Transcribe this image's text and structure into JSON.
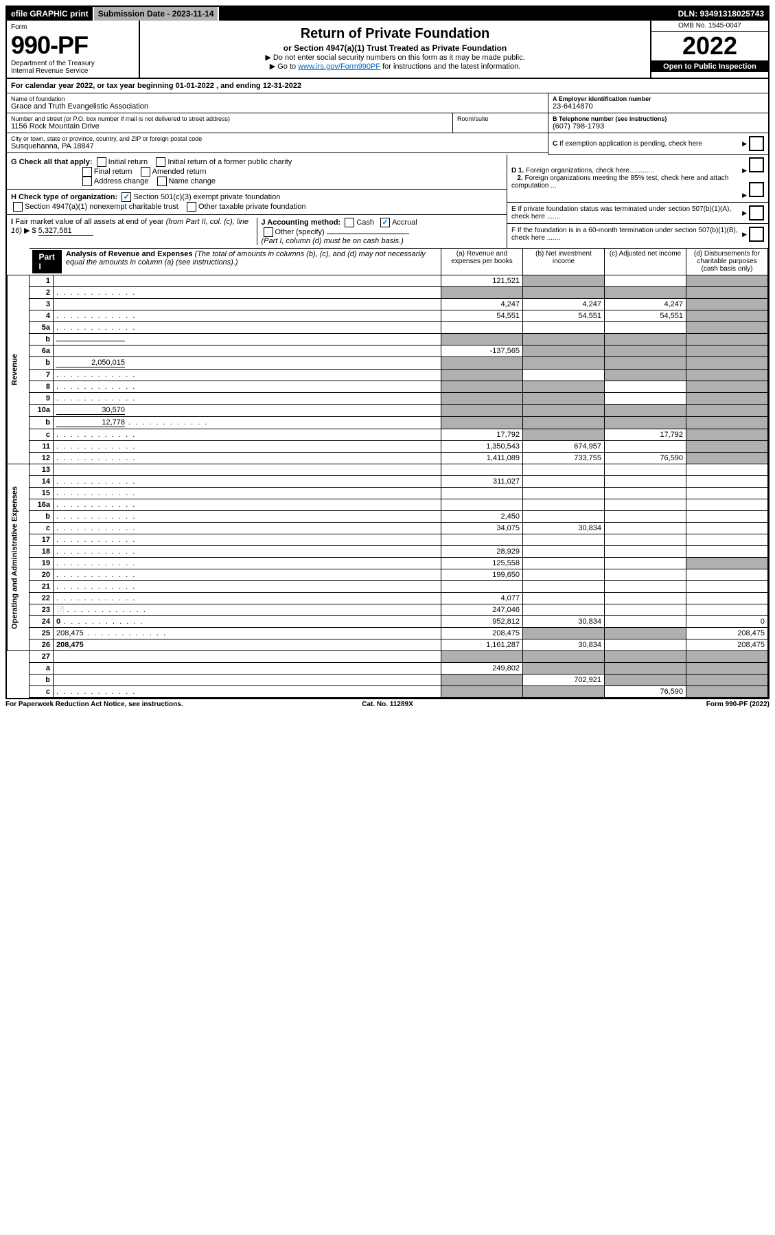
{
  "topbar": {
    "efile": "efile GRAPHIC print",
    "submission": "Submission Date - 2023-11-14",
    "dln": "DLN: 93491318025743"
  },
  "header": {
    "form_label": "Form",
    "form_no": "990-PF",
    "dept": "Department of the Treasury",
    "irs": "Internal Revenue Service",
    "title": "Return of Private Foundation",
    "subtitle": "or Section 4947(a)(1) Trust Treated as Private Foundation",
    "instr1": "▶ Do not enter social security numbers on this form as it may be made public.",
    "instr2_pre": "▶ Go to ",
    "instr2_link": "www.irs.gov/Form990PF",
    "instr2_post": " for instructions and the latest information.",
    "omb": "OMB No. 1545-0047",
    "year": "2022",
    "open": "Open to Public Inspection"
  },
  "calyear": {
    "text_a": "For calendar year 2022, or tax year beginning ",
    "begin": "01-01-2022",
    "text_b": " , and ending ",
    "end": "12-31-2022"
  },
  "id": {
    "name_label": "Name of foundation",
    "name": "Grace and Truth Evangelistic Association",
    "addr_label": "Number and street (or P.O. box number if mail is not delivered to street address)",
    "addr": "1156 Rock Mountain Drive",
    "room_label": "Room/suite",
    "city_label": "City or town, state or province, country, and ZIP or foreign postal code",
    "city": "Susquehanna, PA  18847",
    "ein_label": "A Employer identification number",
    "ein": "23-6414870",
    "phone_label": "B Telephone number (see instructions)",
    "phone": "(607) 798-1793",
    "c_label": "C If exemption application is pending, check here"
  },
  "boxG": {
    "label": "G Check all that apply:",
    "items": [
      "Initial return",
      "Initial return of a former public charity",
      "Final return",
      "Amended return",
      "Address change",
      "Name change"
    ]
  },
  "boxH": {
    "label": "H Check type of organization:",
    "opt1": "Section 501(c)(3) exempt private foundation",
    "opt2": "Section 4947(a)(1) nonexempt charitable trust",
    "opt3": "Other taxable private foundation"
  },
  "boxI": {
    "label": "I Fair market value of all assets at end of year (from Part II, col. (c), line 16) ▶ $",
    "value": "5,327,581"
  },
  "boxJ": {
    "label": "J Accounting method:",
    "cash": "Cash",
    "accrual": "Accrual",
    "other": "Other (specify)",
    "note": "(Part I, column (d) must be on cash basis.)"
  },
  "right": {
    "d1": "D 1. Foreign organizations, check here.............",
    "d2": "2. Foreign organizations meeting the 85% test, check here and attach computation ...",
    "e": "E  If private foundation status was terminated under section 507(b)(1)(A), check here .......",
    "f": "F  If the foundation is in a 60-month termination under section 507(b)(1)(B), check here ......."
  },
  "part1": {
    "badge": "Part I",
    "title": "Analysis of Revenue and Expenses",
    "title_note": " (The total of amounts in columns (b), (c), and (d) may not necessarily equal the amounts in column (a) (see instructions).)",
    "col_a": "(a) Revenue and expenses per books",
    "col_b": "(b) Net investment income",
    "col_c": "(c) Adjusted net income",
    "col_d": "(d) Disbursements for charitable purposes (cash basis only)",
    "revenue_label": "Revenue",
    "expenses_label": "Operating and Administrative Expenses"
  },
  "rows": [
    {
      "n": "1",
      "d": "",
      "a": "121,521",
      "b": "",
      "c": "",
      "sb": true,
      "sd": true
    },
    {
      "n": "2",
      "d": "",
      "a": "",
      "b": "",
      "c": "",
      "sa": true,
      "sb": true,
      "sc": true,
      "sd": true,
      "dots": true
    },
    {
      "n": "3",
      "d": "",
      "a": "4,247",
      "b": "4,247",
      "c": "4,247",
      "sd": true
    },
    {
      "n": "4",
      "d": "",
      "a": "54,551",
      "b": "54,551",
      "c": "54,551",
      "sd": true,
      "dots": true
    },
    {
      "n": "5a",
      "d": "",
      "a": "",
      "b": "",
      "c": "",
      "sd": true,
      "dots": true
    },
    {
      "n": "b",
      "d": "",
      "a": "",
      "b": "",
      "c": "",
      "sa": true,
      "sb": true,
      "sc": true,
      "sd": true,
      "inline": ""
    },
    {
      "n": "6a",
      "d": "",
      "a": "-137,565",
      "b": "",
      "c": "",
      "sb": true,
      "sc": true,
      "sd": true
    },
    {
      "n": "b",
      "d": "",
      "a": "",
      "b": "",
      "c": "",
      "sa": true,
      "sb": true,
      "sc": true,
      "sd": true,
      "inline": "2,050,015"
    },
    {
      "n": "7",
      "d": "",
      "a": "",
      "b": "",
      "c": "",
      "sa": true,
      "sc": true,
      "sd": true,
      "dots": true
    },
    {
      "n": "8",
      "d": "",
      "a": "",
      "b": "",
      "c": "",
      "sa": true,
      "sb": true,
      "sd": true,
      "dots": true
    },
    {
      "n": "9",
      "d": "",
      "a": "",
      "b": "",
      "c": "",
      "sa": true,
      "sb": true,
      "sd": true,
      "dots": true
    },
    {
      "n": "10a",
      "d": "",
      "a": "",
      "b": "",
      "c": "",
      "sa": true,
      "sb": true,
      "sc": true,
      "sd": true,
      "inline": "30,570"
    },
    {
      "n": "b",
      "d": "",
      "a": "",
      "b": "",
      "c": "",
      "sa": true,
      "sb": true,
      "sc": true,
      "sd": true,
      "inline": "12,778",
      "dots": true
    },
    {
      "n": "c",
      "d": "",
      "a": "17,792",
      "b": "",
      "c": "17,792",
      "sb": true,
      "sd": true,
      "dots": true
    },
    {
      "n": "11",
      "d": "",
      "a": "1,350,543",
      "b": "674,957",
      "c": "",
      "sd": true,
      "dots": true
    },
    {
      "n": "12",
      "d": "",
      "a": "1,411,089",
      "b": "733,755",
      "c": "76,590",
      "sd": true,
      "bold": true,
      "dots": true
    }
  ],
  "exp_rows": [
    {
      "n": "13",
      "d": "",
      "a": "",
      "b": "",
      "c": ""
    },
    {
      "n": "14",
      "d": "",
      "a": "311,027",
      "b": "",
      "c": "",
      "dots": true
    },
    {
      "n": "15",
      "d": "",
      "a": "",
      "b": "",
      "c": "",
      "dots": true
    },
    {
      "n": "16a",
      "d": "",
      "a": "",
      "b": "",
      "c": "",
      "dots": true
    },
    {
      "n": "b",
      "d": "",
      "a": "2,450",
      "b": "",
      "c": "",
      "dots": true
    },
    {
      "n": "c",
      "d": "",
      "a": "34,075",
      "b": "30,834",
      "c": "",
      "dots": true
    },
    {
      "n": "17",
      "d": "",
      "a": "",
      "b": "",
      "c": "",
      "dots": true
    },
    {
      "n": "18",
      "d": "",
      "a": "28,929",
      "b": "",
      "c": "",
      "dots": true
    },
    {
      "n": "19",
      "d": "",
      "a": "125,558",
      "b": "",
      "c": "",
      "sd": true,
      "dots": true
    },
    {
      "n": "20",
      "d": "",
      "a": "199,650",
      "b": "",
      "c": "",
      "dots": true
    },
    {
      "n": "21",
      "d": "",
      "a": "",
      "b": "",
      "c": "",
      "dots": true
    },
    {
      "n": "22",
      "d": "",
      "a": "4,077",
      "b": "",
      "c": "",
      "dots": true
    },
    {
      "n": "23",
      "d": "",
      "a": "247,046",
      "b": "",
      "c": "",
      "dots": true,
      "icon": true
    },
    {
      "n": "24",
      "d": "0",
      "a": "952,812",
      "b": "30,834",
      "c": "",
      "bold": true,
      "dots": true
    },
    {
      "n": "25",
      "d": "208,475",
      "a": "208,475",
      "b": "",
      "c": "",
      "sb": true,
      "sc": true,
      "dots": true
    },
    {
      "n": "26",
      "d": "208,475",
      "a": "1,161,287",
      "b": "30,834",
      "c": "",
      "bold": true
    }
  ],
  "bottom_rows": [
    {
      "n": "27",
      "d": "",
      "a": "",
      "b": "",
      "c": "",
      "sa": true,
      "sb": true,
      "sc": true,
      "sd": true
    },
    {
      "n": "a",
      "d": "",
      "a": "249,802",
      "b": "",
      "c": "",
      "sb": true,
      "sc": true,
      "sd": true,
      "bold": true
    },
    {
      "n": "b",
      "d": "",
      "a": "",
      "b": "702,921",
      "c": "",
      "sa": true,
      "sc": true,
      "sd": true,
      "bold": true
    },
    {
      "n": "c",
      "d": "",
      "a": "",
      "b": "",
      "c": "76,590",
      "sa": true,
      "sb": true,
      "sd": true,
      "bold": true,
      "dots": true
    }
  ],
  "footer": {
    "left": "For Paperwork Reduction Act Notice, see instructions.",
    "mid": "Cat. No. 11289X",
    "right": "Form 990-PF (2022)"
  }
}
